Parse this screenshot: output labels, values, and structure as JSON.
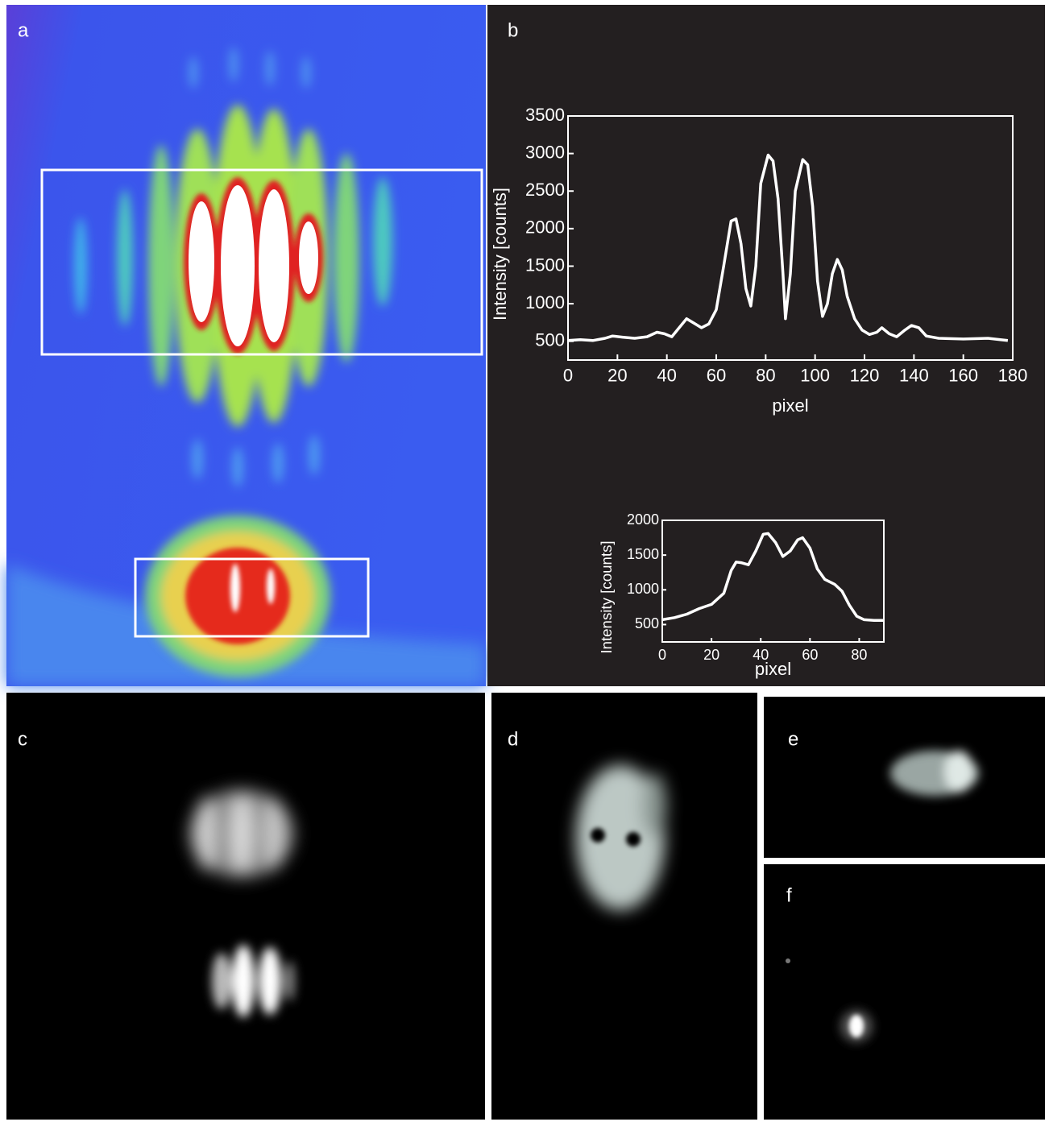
{
  "panels": [
    "a",
    "b",
    "c",
    "d",
    "e",
    "f"
  ],
  "chart_data": [
    {
      "type": "line",
      "xlabel": "pixel",
      "ylabel": "Intensity [counts]",
      "color": "#ffffff",
      "x": [
        0,
        5,
        10,
        15,
        18,
        22,
        27,
        32,
        36,
        39,
        42,
        45,
        48,
        51,
        54,
        57,
        60,
        63,
        66,
        68,
        70,
        72,
        74,
        76,
        78,
        81,
        83,
        85,
        87,
        88,
        90,
        92,
        95,
        97,
        99,
        101,
        103,
        105,
        107,
        109,
        111,
        113,
        116,
        119,
        122,
        125,
        127,
        130,
        133,
        136,
        139,
        142,
        145,
        150,
        160,
        170,
        175,
        178
      ],
      "values": [
        510,
        520,
        510,
        540,
        570,
        555,
        540,
        560,
        620,
        600,
        560,
        680,
        800,
        740,
        680,
        730,
        920,
        1500,
        2100,
        2130,
        1800,
        1200,
        970,
        1500,
        2600,
        2980,
        2900,
        2400,
        1400,
        800,
        1400,
        2500,
        2920,
        2850,
        2300,
        1300,
        830,
        1000,
        1400,
        1590,
        1450,
        1100,
        800,
        650,
        590,
        620,
        680,
        600,
        560,
        640,
        710,
        680,
        570,
        540,
        530,
        540,
        520,
        510
      ],
      "xlim": [
        0,
        180
      ],
      "xticks": [
        0,
        20,
        40,
        60,
        80,
        100,
        120,
        140,
        160,
        180
      ],
      "ylim": [
        250,
        3500
      ],
      "yticks": [
        500,
        1000,
        1500,
        2000,
        2500,
        3000,
        3500
      ]
    },
    {
      "type": "line",
      "xlabel": "pixel",
      "ylabel": "Intensity [counts]",
      "color": "#ffffff",
      "x": [
        0,
        5,
        10,
        15,
        20,
        25,
        28,
        30,
        32,
        35,
        38,
        41,
        43,
        46,
        49,
        52,
        55,
        57,
        60,
        63,
        66,
        70,
        73,
        76,
        79,
        82,
        86,
        90
      ],
      "values": [
        570,
        600,
        650,
        730,
        790,
        950,
        1280,
        1400,
        1390,
        1360,
        1560,
        1800,
        1810,
        1680,
        1480,
        1560,
        1720,
        1750,
        1600,
        1300,
        1150,
        1080,
        980,
        780,
        620,
        570,
        560,
        560
      ],
      "xlim": [
        0,
        90
      ],
      "xticks": [
        0,
        20,
        40,
        60,
        80
      ],
      "ylim": [
        250,
        2000
      ],
      "yticks": [
        500,
        1000,
        1500,
        2000
      ]
    }
  ]
}
